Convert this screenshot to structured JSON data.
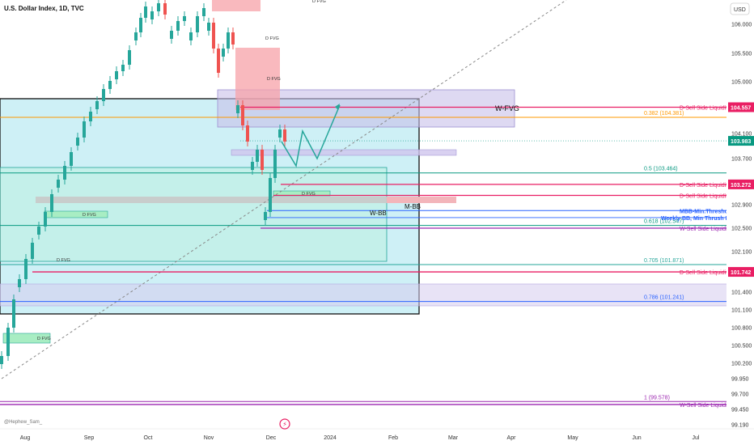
{
  "header": {
    "title": "U.S. Dollar Index, 1D, TVC",
    "currency": "USD"
  },
  "watermark": "@Hephew_Sam_",
  "colors": {
    "up": "#26a69a",
    "down": "#ef5350",
    "magenta": "#e91e63",
    "blue": "#2962ff",
    "orange": "#ff9800",
    "teal": "#089981",
    "purple_zone": "#9c8fd1",
    "cyan_zone": "#5ec8d8",
    "pink_zone": "#f7a1a8",
    "green_zone": "#7ee0a8"
  },
  "chart_data": {
    "type": "candlestick",
    "title": "U.S. Dollar Index, 1D, TVC",
    "y_axis": {
      "ticks": [
        106.0,
        105.5,
        105.0,
        104.1,
        103.7,
        103.3,
        102.9,
        102.5,
        102.1,
        101.7,
        101.4,
        101.1,
        100.8,
        100.5,
        100.2,
        99.95,
        99.7,
        99.45,
        99.19
      ],
      "tick_labels": [
        "106.000",
        "105.500",
        "105.000",
        "104.100",
        "103.700",
        "103.300",
        "102.900",
        "102.500",
        "102.100",
        "101.700",
        "101.400",
        "101.100",
        "100.800",
        "100.500",
        "100.200",
        "99.950",
        "99.700",
        "99.450",
        "99.190"
      ]
    },
    "x_axis": {
      "labels": [
        "Aug",
        "Sep",
        "Oct",
        "Nov",
        "Dec",
        "2024",
        "Feb",
        "Mar",
        "Apr",
        "May",
        "Jun",
        "Jul"
      ]
    },
    "price_badges": [
      {
        "label": "104.557",
        "value": 104.557,
        "color": "#e91e63"
      },
      {
        "label": "103.983",
        "value": 103.983,
        "color": "#089981"
      },
      {
        "label": "103.272",
        "value": 103.272,
        "color": "#e91e63"
      },
      {
        "label": "101.742",
        "value": 101.742,
        "color": "#e91e63"
      }
    ],
    "fib_levels": [
      {
        "label": "0.382 (104.381)",
        "value": 104.381,
        "color": "#ff9800"
      },
      {
        "label": "0.5 (103.464)",
        "value": 103.464,
        "color": "#089981"
      },
      {
        "label": "0.618 (102.547)",
        "value": 102.547,
        "color": "#089981"
      },
      {
        "label": "0.705 (101.871)",
        "value": 101.871,
        "color": "#26a69a"
      },
      {
        "label": "0.786 (101.241)",
        "value": 101.241,
        "color": "#2962ff"
      },
      {
        "label": "1 (99.578)",
        "value": 99.578,
        "color": "#9c27b0"
      }
    ],
    "liquidity_lines": [
      {
        "label": "D-Sell Side Liquidity",
        "value": 104.557,
        "color": "#e91e63",
        "arrow": false
      },
      {
        "label": "D-Sell Side Liquidity",
        "value": 103.272,
        "color": "#e91e63",
        "arrow": false
      },
      {
        "label": "D-Sell Side Liquidity",
        "value": 103.07,
        "color": "#e91e63",
        "arrow": true
      },
      {
        "label": "W-Sell Side Liquidity",
        "value": 102.5,
        "color": "#9c27b0",
        "arrow": true
      },
      {
        "label": "D-Sell Side Liquidity",
        "value": 101.742,
        "color": "#e91e63",
        "arrow": false
      },
      {
        "label": "W-Sell Side Liquidity",
        "value": 99.53,
        "color": "#9c27b0",
        "arrow": true
      }
    ],
    "bb_lines": [
      {
        "label": "MBB-Min.Threshold",
        "value": 102.8,
        "color": "#2962ff"
      },
      {
        "label": "Weekly BB, Min Thrush Hold",
        "value": 102.68,
        "color": "#2962ff"
      }
    ],
    "zone_labels": {
      "wfvg": "W-FVG",
      "mbb": "M-BB",
      "wbb": "W-BB",
      "dfvg": "D FVG"
    }
  }
}
